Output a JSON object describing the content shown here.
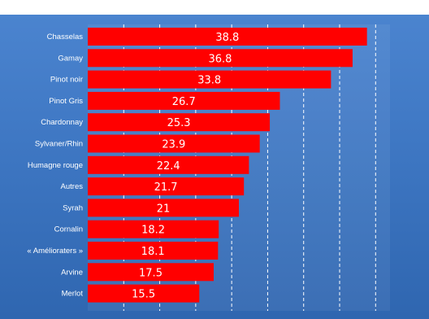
{
  "chart_data": {
    "type": "bar",
    "orientation": "horizontal",
    "categories": [
      "Chasselas",
      "Gamay",
      "Pinot noir",
      "Pinot Gris",
      "Chardonnay",
      "Sylvaner/Rhin",
      "Humagne rouge",
      "Autres",
      "Syrah",
      "Cornalin",
      "« Amélioraters »",
      "Arvine",
      "Merlot"
    ],
    "values": [
      38.8,
      36.8,
      33.8,
      26.7,
      25.3,
      23.9,
      22.4,
      21.7,
      21,
      18.2,
      18.1,
      17.5,
      15.5
    ],
    "value_labels": [
      "38.8",
      "36.8",
      "33.8",
      "26.7",
      "25.3",
      "23.9",
      "22.4",
      "21.7",
      "21",
      "18.2",
      "18.1",
      "17.5",
      "15.5"
    ],
    "title": "",
    "xlabel": "",
    "ylabel": "",
    "xlim": [
      0,
      42
    ],
    "grid": true,
    "colors": {
      "bar": "#ff0000",
      "grid": "#ffffff",
      "background": "#3f78c4",
      "text": "#ffffff"
    }
  }
}
